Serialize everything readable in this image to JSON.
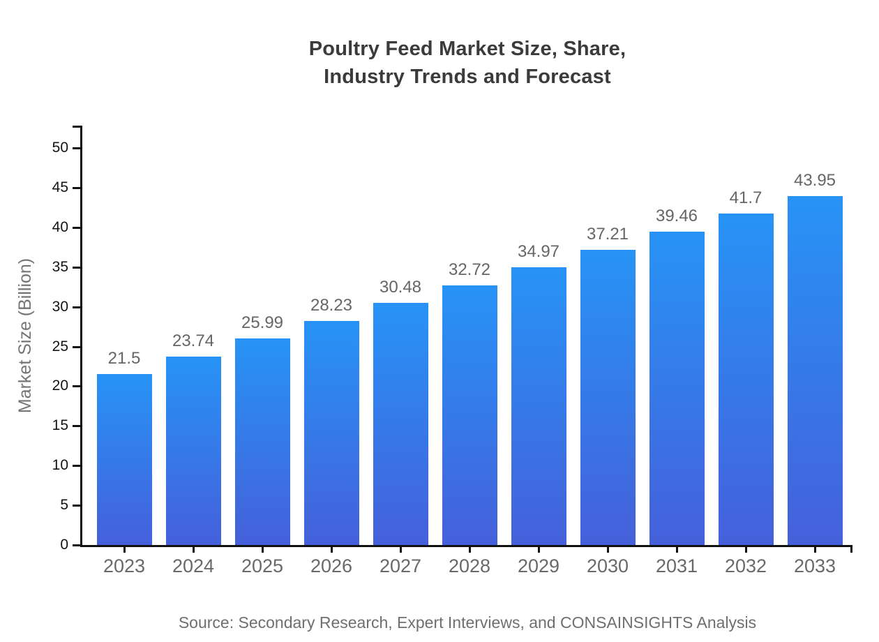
{
  "title": {
    "line1": "Poultry Feed Market Size, Share,",
    "line2": "Industry Trends and Forecast"
  },
  "source": "Source: Secondary Research, Expert Interviews, and CONSAINSIGHTS Analysis",
  "chart_data": {
    "type": "bar",
    "title": "Poultry Feed Market Size, Share, Industry Trends and Forecast",
    "categories": [
      "2023",
      "2024",
      "2025",
      "2026",
      "2027",
      "2028",
      "2029",
      "2030",
      "2031",
      "2032",
      "2033"
    ],
    "values": [
      21.5,
      23.74,
      25.99,
      28.23,
      30.48,
      32.72,
      34.97,
      37.21,
      39.46,
      41.7,
      43.95
    ],
    "value_labels": [
      "21.5",
      "23.74",
      "25.99",
      "28.23",
      "30.48",
      "32.72",
      "34.97",
      "37.21",
      "39.46",
      "41.7",
      "43.95"
    ],
    "xlabel": "",
    "ylabel": "Market Size (Billion)",
    "ylim": [
      0,
      52.7
    ],
    "yticks": [
      0,
      5,
      10,
      15,
      20,
      25,
      30,
      35,
      40,
      45,
      50
    ],
    "grid": false,
    "legend": false,
    "colors": {
      "bar_gradient_top": "#2793F6",
      "bar_gradient_bottom": "#4560DA",
      "axis": "#111111",
      "value_label": "#666666",
      "xtick_label": "#696969",
      "ytick_label": "#141414",
      "title": "#3B3B3B",
      "ylabel": "#757575",
      "source": "#6F6F6F"
    }
  }
}
